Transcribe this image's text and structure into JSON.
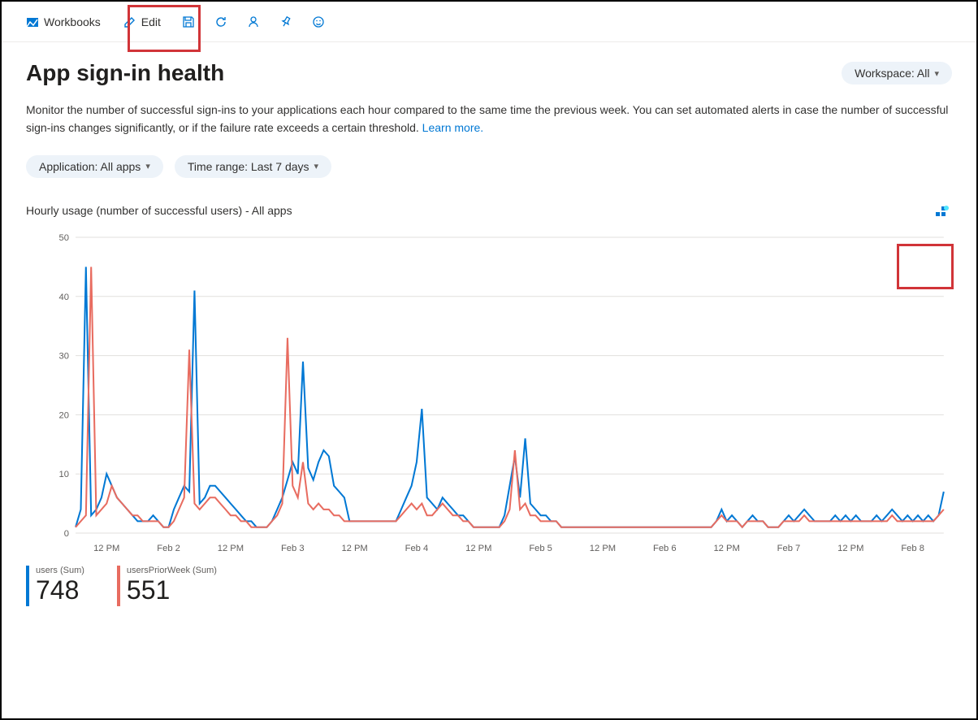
{
  "toolbar": {
    "workbooks_label": "Workbooks",
    "edit_label": "Edit"
  },
  "page": {
    "title": "App sign-in health",
    "workspace_pill": "Workspace: All",
    "description_1": "Monitor the number of successful sign-ins to your applications each hour compared to the same time the previous week. You can set automated alerts in case the number of successful sign-ins changes significantly, or if the failure rate exceeds a certain threshold. ",
    "learn_more": "Learn more.",
    "filter_app": "Application: All apps",
    "filter_time": "Time range: Last 7 days"
  },
  "chart": {
    "title": "Hourly usage (number of successful users) - All apps",
    "type": "line",
    "ylim": [
      0,
      50
    ],
    "yticks": [
      0,
      10,
      20,
      30,
      40,
      50
    ],
    "xlabels": [
      "12 PM",
      "Feb 2",
      "12 PM",
      "Feb 3",
      "12 PM",
      "Feb 4",
      "12 PM",
      "Feb 5",
      "12 PM",
      "Feb 6",
      "12 PM",
      "Feb 7",
      "12 PM",
      "Feb 8"
    ],
    "grid_color": "#e1dfdd",
    "background_color": "#ffffff",
    "series": [
      {
        "name": "users (Sum)",
        "color": "#0078d4",
        "sum": 748,
        "values": [
          1,
          4,
          45,
          3,
          4,
          6,
          10,
          8,
          6,
          5,
          4,
          3,
          2,
          2,
          2,
          3,
          2,
          1,
          1,
          4,
          6,
          8,
          7,
          41,
          5,
          6,
          8,
          8,
          7,
          6,
          5,
          4,
          3,
          2,
          2,
          1,
          1,
          1,
          2,
          4,
          6,
          9,
          12,
          10,
          29,
          11,
          9,
          12,
          14,
          13,
          8,
          7,
          6,
          2,
          2,
          2,
          2,
          2,
          2,
          2,
          2,
          2,
          2,
          4,
          6,
          8,
          12,
          21,
          6,
          5,
          4,
          6,
          5,
          4,
          3,
          3,
          2,
          1,
          1,
          1,
          1,
          1,
          1,
          3,
          8,
          13,
          6,
          16,
          5,
          4,
          3,
          3,
          2,
          2,
          1,
          1,
          1,
          1,
          1,
          1,
          1,
          1,
          1,
          1,
          1,
          1,
          1,
          1,
          1,
          1,
          1,
          1,
          1,
          1,
          1,
          1,
          1,
          1,
          1,
          1,
          1,
          1,
          1,
          1,
          2,
          4,
          2,
          3,
          2,
          1,
          2,
          3,
          2,
          2,
          1,
          1,
          1,
          2,
          3,
          2,
          3,
          4,
          3,
          2,
          2,
          2,
          2,
          3,
          2,
          3,
          2,
          3,
          2,
          2,
          2,
          3,
          2,
          3,
          4,
          3,
          2,
          3,
          2,
          3,
          2,
          3,
          2,
          3,
          7
        ]
      },
      {
        "name": "usersPriorWeek (Sum)",
        "color": "#e86c60",
        "sum": 551,
        "values": [
          1,
          2,
          3,
          45,
          3,
          4,
          5,
          8,
          6,
          5,
          4,
          3,
          3,
          2,
          2,
          2,
          2,
          1,
          1,
          2,
          4,
          6,
          31,
          5,
          4,
          5,
          6,
          6,
          5,
          4,
          3,
          3,
          2,
          2,
          1,
          1,
          1,
          1,
          2,
          3,
          5,
          33,
          8,
          6,
          12,
          5,
          4,
          5,
          4,
          4,
          3,
          3,
          2,
          2,
          2,
          2,
          2,
          2,
          2,
          2,
          2,
          2,
          2,
          3,
          4,
          5,
          4,
          5,
          3,
          3,
          4,
          5,
          4,
          3,
          3,
          2,
          2,
          1,
          1,
          1,
          1,
          1,
          1,
          2,
          4,
          14,
          4,
          5,
          3,
          3,
          2,
          2,
          2,
          2,
          1,
          1,
          1,
          1,
          1,
          1,
          1,
          1,
          1,
          1,
          1,
          1,
          1,
          1,
          1,
          1,
          1,
          1,
          1,
          1,
          1,
          1,
          1,
          1,
          1,
          1,
          1,
          1,
          1,
          1,
          2,
          3,
          2,
          2,
          2,
          1,
          2,
          2,
          2,
          2,
          1,
          1,
          1,
          2,
          2,
          2,
          2,
          3,
          2,
          2,
          2,
          2,
          2,
          2,
          2,
          2,
          2,
          2,
          2,
          2,
          2,
          2,
          2,
          2,
          3,
          2,
          2,
          2,
          2,
          2,
          2,
          2,
          2,
          3,
          4
        ]
      }
    ],
    "axis_fontsize": 11,
    "line_width": 2
  },
  "stats": {
    "users_label": "users (Sum)",
    "users_value": "748",
    "prior_label": "usersPriorWeek (Sum)",
    "prior_value": "551"
  },
  "colors": {
    "primary": "#0078d4",
    "secondary": "#e86c60",
    "highlight_border": "#d13438"
  }
}
